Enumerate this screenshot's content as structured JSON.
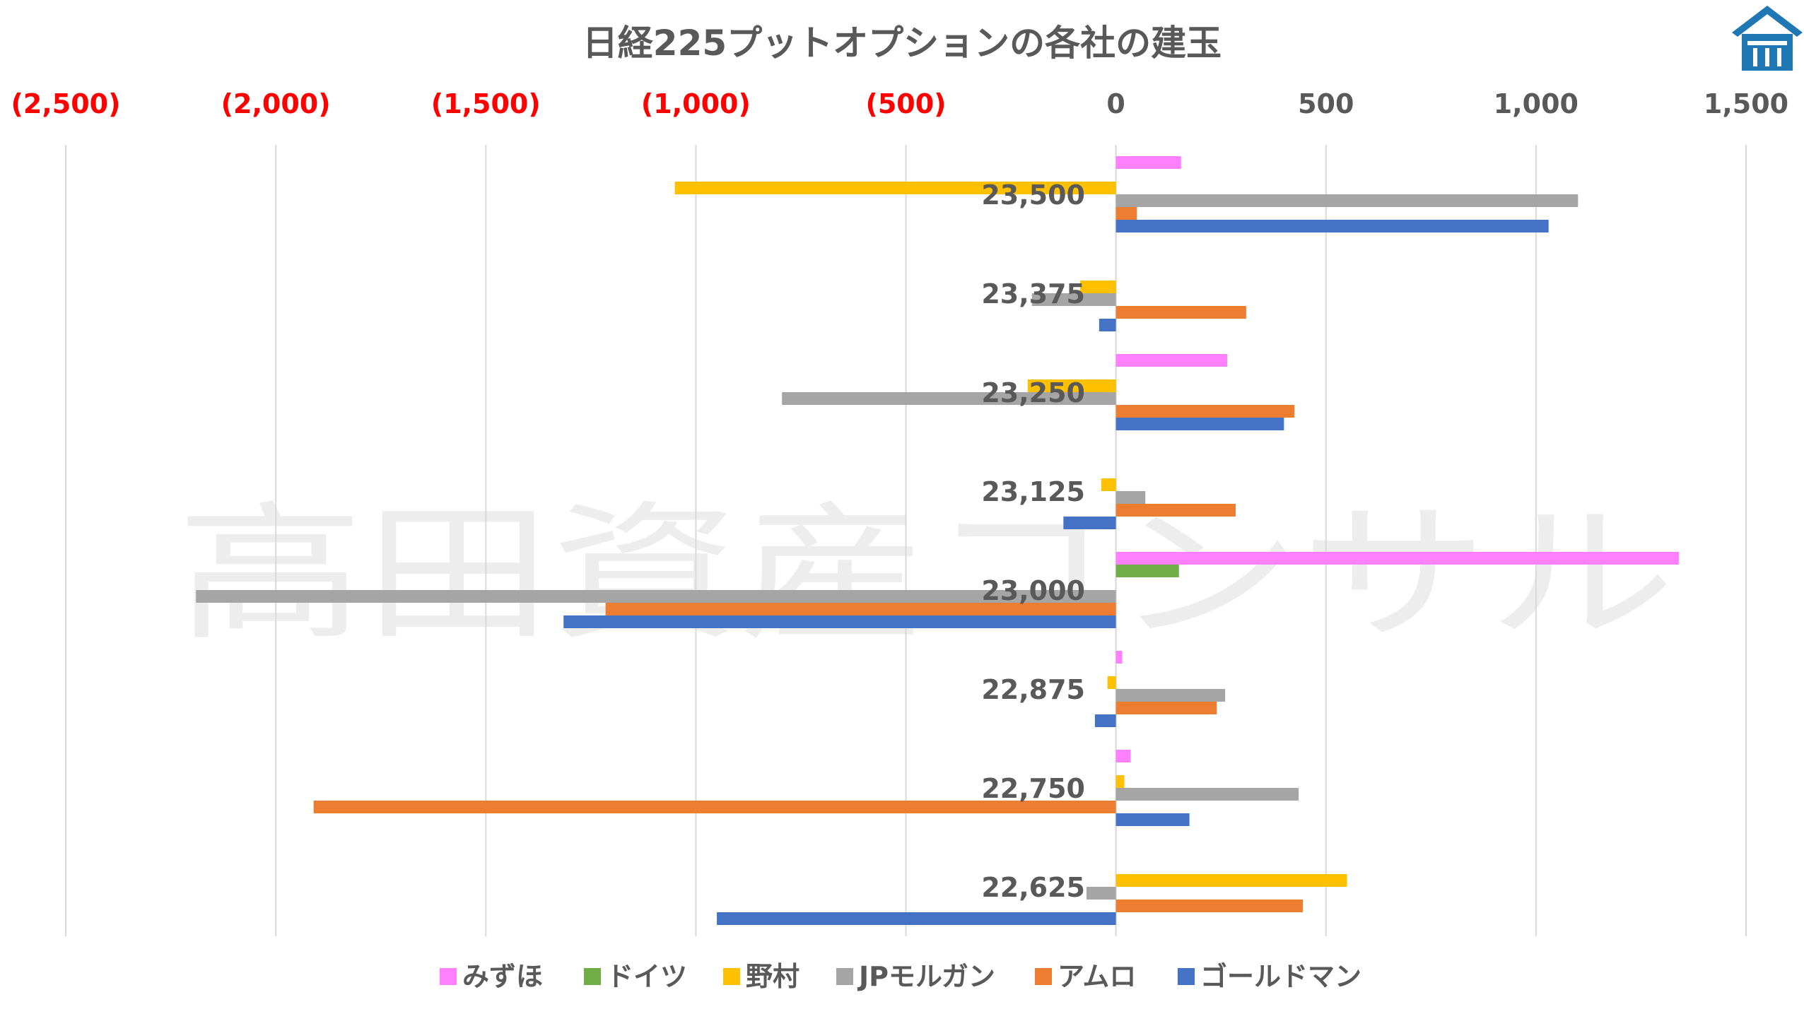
{
  "chart_data": {
    "type": "bar",
    "orientation": "horizontal",
    "title": "日経225プットオプションの各社の建玉",
    "xlim": [
      -2500,
      1500
    ],
    "x_ticks": [
      {
        "value": -2500,
        "label": "(2,500)"
      },
      {
        "value": -2000,
        "label": "(2,000)"
      },
      {
        "value": -1500,
        "label": "(1,500)"
      },
      {
        "value": -1000,
        "label": "(1,000)"
      },
      {
        "value": -500,
        "label": "(500)"
      },
      {
        "value": 0,
        "label": "0"
      },
      {
        "value": 500,
        "label": "500"
      },
      {
        "value": 1000,
        "label": "1,000"
      },
      {
        "value": 1500,
        "label": "1,500"
      }
    ],
    "negative_tick_color": "#ff0000",
    "positive_tick_color": "#595959",
    "grid": true,
    "legend_position": "bottom",
    "categories": [
      "23,500",
      "23,375",
      "23,250",
      "23,125",
      "23,000",
      "22,875",
      "22,750",
      "22,625"
    ],
    "series": [
      {
        "name": "みずほ",
        "color": "#ff80ff",
        "values": [
          155,
          0,
          265,
          0,
          1340,
          15,
          35,
          0
        ]
      },
      {
        "name": "ドイツ",
        "color": "#70ad47",
        "values": [
          0,
          0,
          0,
          0,
          150,
          0,
          0,
          0
        ]
      },
      {
        "name": "野村",
        "color": "#ffc000",
        "values": [
          -1050,
          -85,
          -210,
          -35,
          0,
          -20,
          20,
          550
        ]
      },
      {
        "name": "JPモルガン",
        "color": "#a5a5a5",
        "values": [
          1100,
          -200,
          -795,
          70,
          -2190,
          260,
          435,
          -70
        ]
      },
      {
        "name": "アムロ",
        "color": "#ed7d31",
        "values": [
          50,
          310,
          425,
          285,
          -1215,
          240,
          -1910,
          445
        ]
      },
      {
        "name": "ゴールドマン",
        "color": "#4472c4",
        "values": [
          1030,
          -40,
          400,
          -125,
          -1315,
          -50,
          175,
          -950
        ]
      }
    ]
  },
  "watermark": "高田資産コンサル",
  "logo": {
    "icon": "house-logo-icon",
    "color": "#1f78b4"
  }
}
